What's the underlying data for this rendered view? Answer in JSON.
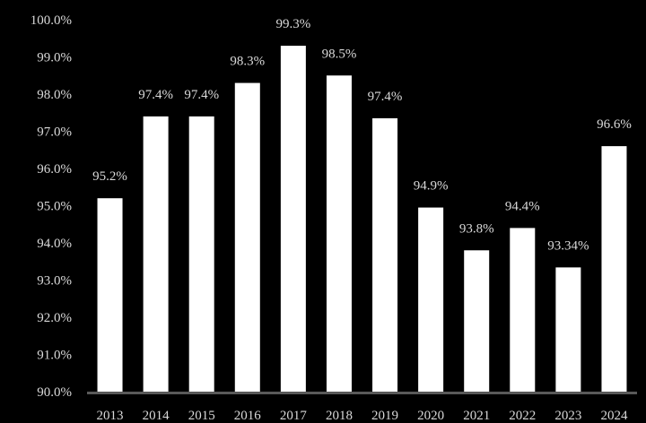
{
  "chart_data": {
    "type": "bar",
    "categories": [
      "2013",
      "2014",
      "2015",
      "2016",
      "2017",
      "2018",
      "2019",
      "2020",
      "2021",
      "2022",
      "2023",
      "2024"
    ],
    "values": [
      95.2,
      97.4,
      97.4,
      98.3,
      99.3,
      98.5,
      97.35,
      94.95,
      93.8,
      94.4,
      93.34,
      96.6
    ],
    "data_labels": [
      "95.2%",
      "97.4%",
      "97.4%",
      "98.3%",
      "99.3%",
      "98.5%",
      "97.4%",
      "94.9%",
      "93.8%",
      "94.4%",
      "93.34%",
      "96.6%"
    ],
    "ylim": [
      90,
      100
    ],
    "y_ticks": [
      90,
      91,
      92,
      93,
      94,
      95,
      96,
      97,
      98,
      99,
      100
    ],
    "y_tick_labels": [
      "90.0%",
      "91.0%",
      "92.0%",
      "93.0%",
      "94.0%",
      "95.0%",
      "96.0%",
      "97.0%",
      "98.0%",
      "99.0%",
      "100.0%"
    ],
    "grid": false,
    "legend": "none",
    "colors": {
      "background": "#000000",
      "bar": "#ffffff",
      "text": "#d9d9d9",
      "axis": "#595959"
    }
  }
}
